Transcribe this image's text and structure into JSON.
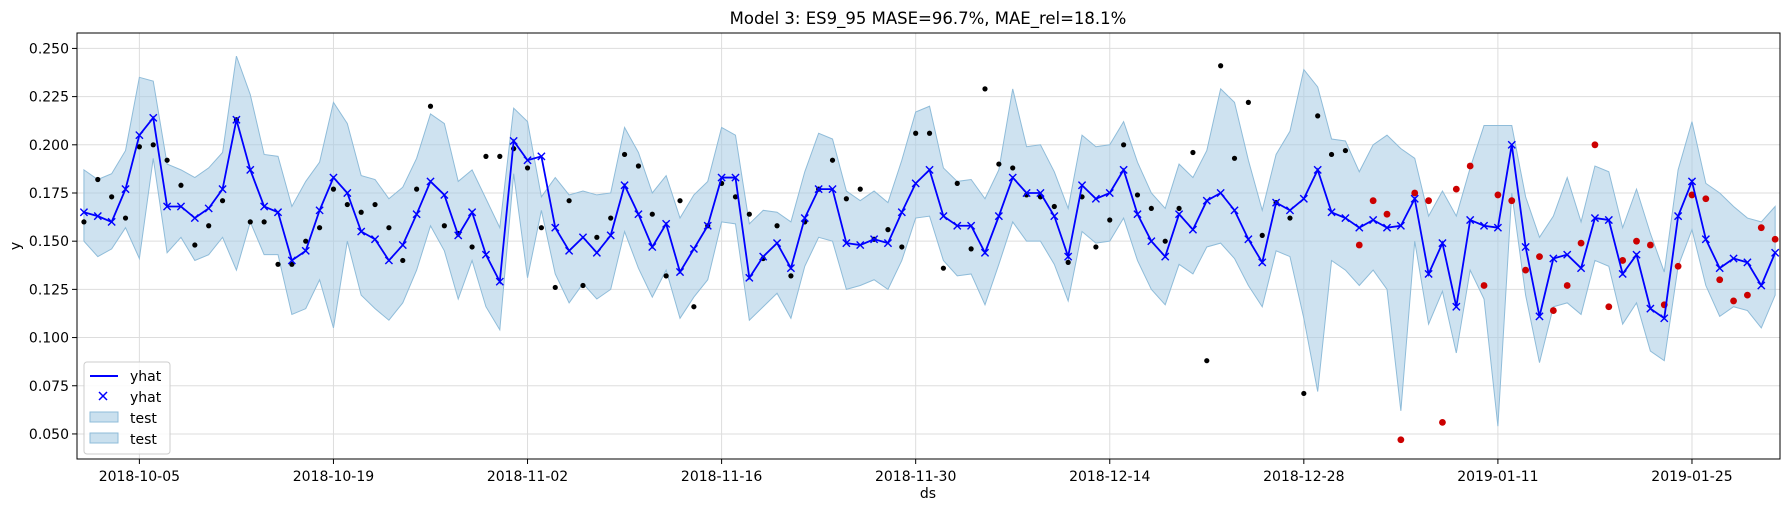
{
  "chart_data": {
    "type": "line",
    "title": "Model 3: ES9_95 MASE=96.7%, MAE_rel=18.1%",
    "xlabel": "ds",
    "ylabel": "y",
    "x_start": "2018-10-01",
    "x_tick_labels": [
      "2018-10-05",
      "2018-10-19",
      "2018-11-02",
      "2018-11-16",
      "2018-11-30",
      "2018-12-14",
      "2018-12-28",
      "2019-01-11",
      "2019-01-25"
    ],
    "y_tick_labels": [
      "0.050",
      "0.075",
      "0.100",
      "0.125",
      "0.150",
      "0.175",
      "0.200",
      "0.225",
      "0.250"
    ],
    "ylim": [
      0.037,
      0.258
    ],
    "grid": true,
    "legend_position": "lower-left",
    "legend": [
      "yhat",
      "yhat",
      "test",
      "test"
    ],
    "colors": {
      "yhat": "#0000ff",
      "band": "#a6cbe3",
      "band_edge": "#8fbcd9",
      "train_points": "#000000",
      "test_points": "#cc0000",
      "grid": "#dddddd"
    },
    "series": [
      {
        "name": "yhat",
        "style": "line-with-x-markers",
        "values": [
          0.165,
          0.163,
          0.16,
          0.177,
          0.205,
          0.214,
          0.168,
          0.168,
          0.162,
          0.167,
          0.177,
          0.213,
          0.187,
          0.168,
          0.165,
          0.14,
          0.145,
          0.166,
          0.183,
          0.175,
          0.155,
          0.151,
          0.14,
          0.148,
          0.164,
          0.181,
          0.174,
          0.153,
          0.165,
          0.143,
          0.129,
          0.202,
          0.192,
          0.194,
          0.157,
          0.145,
          0.152,
          0.144,
          0.153,
          0.179,
          0.164,
          0.147,
          0.159,
          0.134,
          0.146,
          0.158,
          0.183,
          0.183,
          0.131,
          0.142,
          0.149,
          0.136,
          0.162,
          0.177,
          0.177,
          0.149,
          0.148,
          0.151,
          0.149,
          0.165,
          0.18,
          0.187,
          0.163,
          0.158,
          0.158,
          0.144,
          0.163,
          0.183,
          0.175,
          0.175,
          0.163,
          0.142,
          0.179,
          0.172,
          0.175,
          0.187,
          0.164,
          0.15,
          0.142,
          0.164,
          0.156,
          0.171,
          0.175,
          0.166,
          0.151,
          0.139,
          0.17,
          0.166,
          0.172,
          0.187,
          0.165,
          0.162,
          0.157,
          0.161,
          0.157,
          0.158,
          0.172,
          0.133,
          0.149,
          0.116,
          0.161,
          0.158,
          0.157,
          0.2,
          0.147,
          0.111,
          0.141,
          0.143,
          0.136,
          0.162,
          0.161,
          0.133,
          0.143,
          0.115,
          0.11,
          0.163,
          0.181,
          0.151,
          0.136,
          0.141,
          0.139,
          0.127,
          0.144
        ]
      },
      {
        "name": "test",
        "style": "band",
        "lower": [
          0.15,
          0.142,
          0.146,
          0.157,
          0.141,
          0.193,
          0.144,
          0.152,
          0.14,
          0.143,
          0.152,
          0.135,
          0.16,
          0.143,
          0.143,
          0.112,
          0.115,
          0.13,
          0.105,
          0.15,
          0.122,
          0.115,
          0.109,
          0.118,
          0.135,
          0.158,
          0.145,
          0.12,
          0.14,
          0.116,
          0.104,
          0.185,
          0.131,
          0.166,
          0.133,
          0.118,
          0.128,
          0.12,
          0.125,
          0.155,
          0.136,
          0.121,
          0.135,
          0.11,
          0.121,
          0.13,
          0.16,
          0.159,
          0.109,
          0.116,
          0.123,
          0.11,
          0.137,
          0.152,
          0.15,
          0.125,
          0.127,
          0.13,
          0.125,
          0.14,
          0.162,
          0.163,
          0.14,
          0.132,
          0.133,
          0.117,
          0.138,
          0.16,
          0.15,
          0.15,
          0.138,
          0.119,
          0.155,
          0.149,
          0.15,
          0.162,
          0.14,
          0.125,
          0.117,
          0.138,
          0.133,
          0.147,
          0.149,
          0.141,
          0.127,
          0.116,
          0.145,
          0.142,
          0.11,
          0.072,
          0.14,
          0.135,
          0.127,
          0.135,
          0.125,
          0.062,
          0.15,
          0.107,
          0.124,
          0.092,
          0.135,
          0.12,
          0.054,
          0.175,
          0.122,
          0.087,
          0.116,
          0.118,
          0.112,
          0.14,
          0.137,
          0.107,
          0.118,
          0.093,
          0.088,
          0.137,
          0.156,
          0.127,
          0.111,
          0.116,
          0.114,
          0.105,
          0.122
        ],
        "upper": [
          0.187,
          0.182,
          0.185,
          0.197,
          0.235,
          0.233,
          0.19,
          0.187,
          0.183,
          0.188,
          0.196,
          0.246,
          0.226,
          0.195,
          0.194,
          0.168,
          0.181,
          0.191,
          0.222,
          0.211,
          0.184,
          0.182,
          0.172,
          0.178,
          0.193,
          0.216,
          0.211,
          0.181,
          0.187,
          0.172,
          0.157,
          0.219,
          0.212,
          0.173,
          0.183,
          0.174,
          0.176,
          0.174,
          0.175,
          0.209,
          0.196,
          0.175,
          0.184,
          0.162,
          0.174,
          0.181,
          0.209,
          0.205,
          0.159,
          0.166,
          0.165,
          0.16,
          0.186,
          0.206,
          0.203,
          0.176,
          0.171,
          0.176,
          0.17,
          0.192,
          0.217,
          0.22,
          0.188,
          0.181,
          0.182,
          0.172,
          0.187,
          0.229,
          0.199,
          0.2,
          0.186,
          0.167,
          0.205,
          0.199,
          0.2,
          0.212,
          0.191,
          0.175,
          0.167,
          0.19,
          0.183,
          0.197,
          0.229,
          0.222,
          0.192,
          0.166,
          0.195,
          0.207,
          0.239,
          0.23,
          0.203,
          0.202,
          0.186,
          0.2,
          0.205,
          0.198,
          0.193,
          0.163,
          0.176,
          0.163,
          0.188,
          0.21,
          0.21,
          0.21,
          0.173,
          0.152,
          0.163,
          0.183,
          0.16,
          0.189,
          0.186,
          0.157,
          0.177,
          0.154,
          0.134,
          0.187,
          0.212,
          0.18,
          0.175,
          0.168,
          0.162,
          0.16,
          0.168
        ]
      },
      {
        "name": "actual_train",
        "style": "black-dots",
        "values": [
          0.16,
          0.182,
          0.173,
          0.162,
          0.199,
          0.2,
          0.192,
          0.179,
          0.148,
          0.158,
          0.171,
          0.213,
          0.16,
          0.16,
          0.138,
          0.138,
          0.15,
          0.157,
          0.177,
          0.169,
          0.165,
          0.169,
          0.157,
          0.14,
          0.177,
          0.22,
          0.158,
          0.154,
          0.147,
          0.194,
          0.194,
          0.198,
          0.188,
          0.157,
          0.126,
          0.171,
          0.127,
          0.152,
          0.162,
          0.195,
          0.189,
          0.164,
          0.132,
          0.171,
          0.116,
          0.158,
          0.18,
          0.173,
          0.164,
          0.141,
          0.158,
          0.132,
          0.16,
          0.177,
          0.192,
          0.172,
          0.177,
          0.151,
          0.156,
          0.147,
          0.206,
          0.206,
          0.136,
          0.18,
          0.146,
          0.229,
          0.19,
          0.188,
          0.174,
          0.173,
          0.168,
          0.139,
          0.173,
          0.147,
          0.161,
          0.2,
          0.174,
          0.167,
          0.15,
          0.167,
          0.196,
          0.088,
          0.241,
          0.193,
          0.222,
          0.153,
          0.17,
          0.162,
          0.071,
          0.215,
          0.195,
          0.197
        ],
        "start_index": 0
      },
      {
        "name": "actual_test",
        "style": "red-dots",
        "start_index": 92,
        "values": [
          0.148,
          0.171,
          0.164,
          0.047,
          0.175,
          0.171,
          0.056,
          0.177,
          0.189,
          0.127,
          0.174,
          0.171,
          0.135,
          0.142,
          0.114,
          0.127,
          0.149,
          0.2,
          0.116,
          0.14,
          0.15,
          0.148,
          0.117,
          0.137,
          0.174,
          0.172,
          0.13,
          0.119,
          0.122,
          0.157,
          0.151
        ]
      }
    ]
  }
}
